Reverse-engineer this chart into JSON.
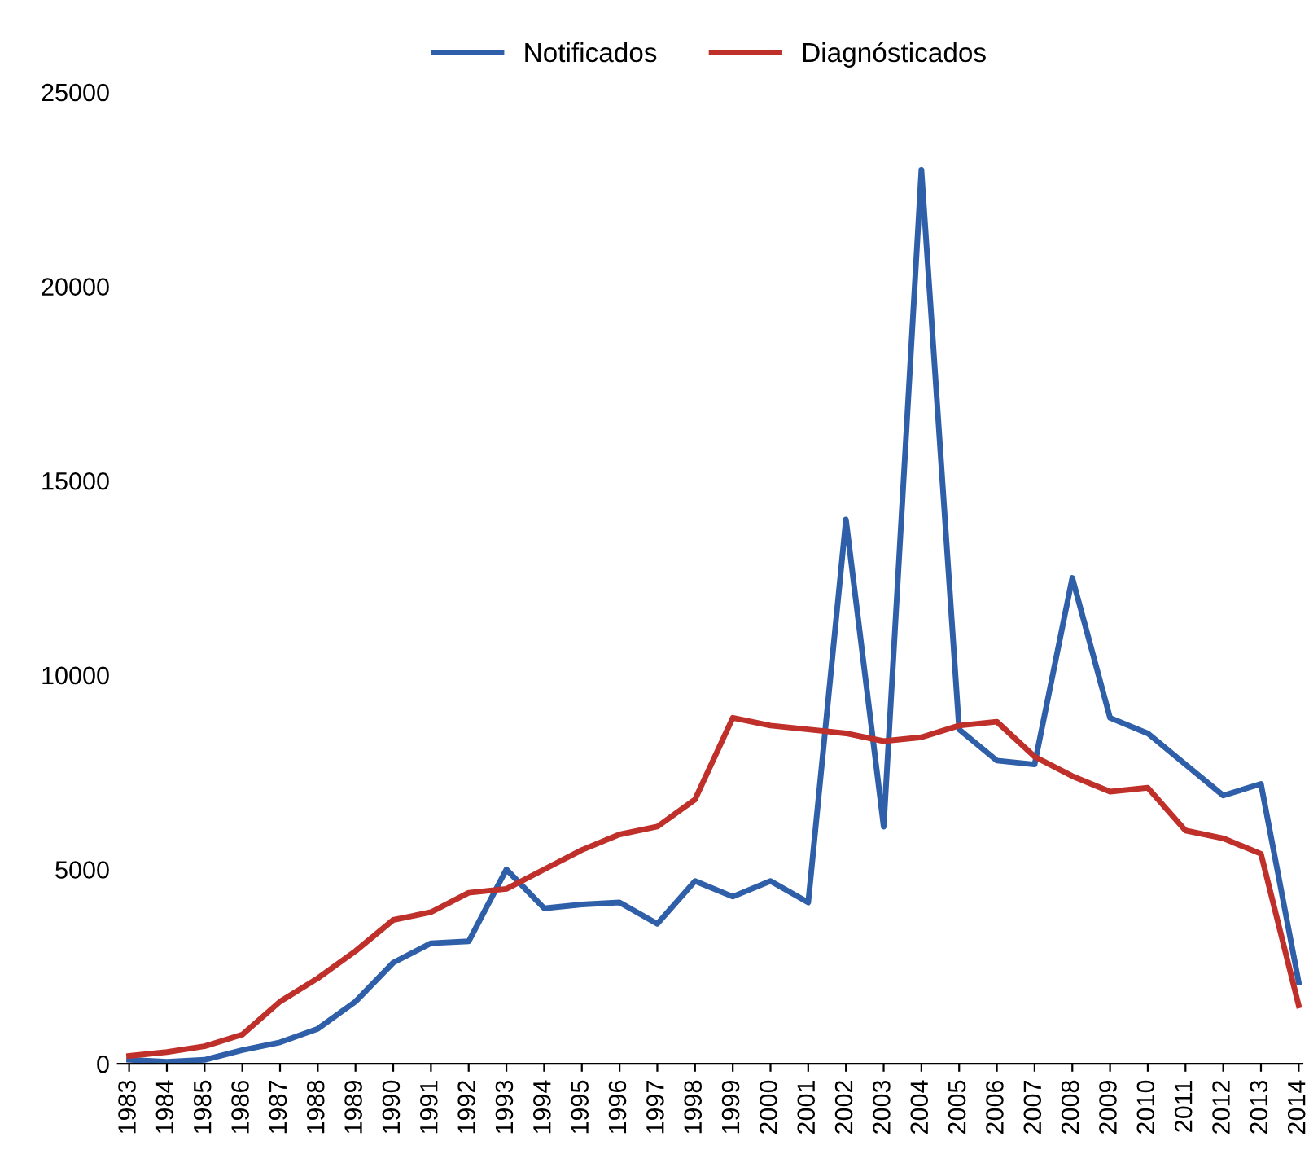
{
  "chart_data": {
    "type": "line",
    "categories": [
      "1983",
      "1984",
      "1985",
      "1986",
      "1987",
      "1988",
      "1989",
      "1990",
      "1991",
      "1992",
      "1993",
      "1994",
      "1995",
      "1996",
      "1997",
      "1998",
      "1999",
      "2000",
      "2001",
      "2002",
      "2003",
      "2004",
      "2005",
      "2006",
      "2007",
      "2008",
      "2009",
      "2010",
      "2011",
      "2012",
      "2013",
      "2014"
    ],
    "series": [
      {
        "name": "Notificados",
        "color": "#2e5fa8",
        "values": [
          100,
          50,
          100,
          350,
          550,
          900,
          1600,
          2600,
          3100,
          3150,
          5000,
          4000,
          4100,
          4150,
          3600,
          4700,
          4300,
          4700,
          4150,
          14000,
          6100,
          23000,
          8600,
          7800,
          7700,
          12500,
          8900,
          8500,
          7700,
          6900,
          7200,
          2100
        ]
      },
      {
        "name": "Diagnósticados",
        "color": "#c0302b",
        "values": [
          200,
          300,
          450,
          750,
          1600,
          2200,
          2900,
          3700,
          3900,
          4400,
          4500,
          5000,
          5500,
          5900,
          6100,
          6800,
          8900,
          8700,
          8600,
          8500,
          8300,
          8400,
          8700,
          8800,
          7900,
          7400,
          7000,
          7100,
          6000,
          5800,
          5400,
          1500
        ]
      }
    ],
    "ylim": [
      0,
      25000
    ],
    "yticks": [
      0,
      5000,
      10000,
      15000,
      20000,
      25000
    ],
    "grid": false,
    "legend": "top",
    "marker": "none",
    "line_style": "solid"
  }
}
